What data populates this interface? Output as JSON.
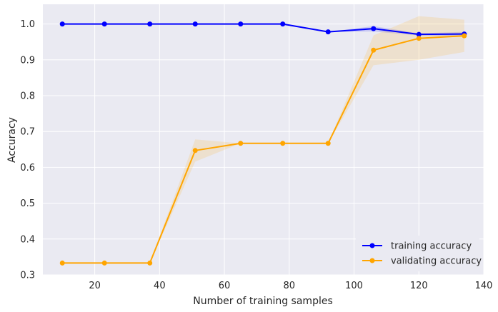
{
  "chart_data": {
    "type": "line",
    "title": "",
    "xlabel": "Number of training samples",
    "ylabel": "Accuracy",
    "xlim": [
      4,
      140
    ],
    "ylim": [
      0.3,
      1.055
    ],
    "xticks": [
      20,
      40,
      60,
      80,
      100,
      120,
      140
    ],
    "yticks": [
      0.3,
      0.4,
      0.5,
      0.6,
      0.7,
      0.8,
      0.9,
      1.0
    ],
    "xtick_labels": [
      "20",
      "40",
      "60",
      "80",
      "100",
      "120",
      "140"
    ],
    "ytick_labels": [
      "0.3",
      "0.4",
      "0.5",
      "0.6",
      "0.7",
      "0.8",
      "0.9",
      "1.0"
    ],
    "grid": true,
    "legend_position": "bottom-right",
    "x": [
      10,
      23,
      37,
      51,
      65,
      78,
      92,
      106,
      120,
      134
    ],
    "series": [
      {
        "name": "training accuracy",
        "color": "#0000ff",
        "values": [
          1.0,
          1.0,
          1.0,
          1.0,
          1.0,
          1.0,
          0.978,
          0.987,
          0.971,
          0.972
        ],
        "band_upper": [
          1.0,
          1.0,
          1.0,
          1.0,
          1.0,
          1.0,
          0.978,
          0.994,
          0.974,
          0.978
        ],
        "band_lower": [
          1.0,
          1.0,
          1.0,
          1.0,
          1.0,
          1.0,
          0.978,
          0.979,
          0.968,
          0.966
        ]
      },
      {
        "name": "validating accuracy",
        "color": "#ffa500",
        "values": [
          0.333,
          0.333,
          0.333,
          0.647,
          0.667,
          0.667,
          0.667,
          0.927,
          0.96,
          0.967
        ],
        "band_upper": [
          0.333,
          0.333,
          0.333,
          0.678,
          0.667,
          0.667,
          0.667,
          0.968,
          1.022,
          1.012
        ],
        "band_lower": [
          0.333,
          0.333,
          0.333,
          0.616,
          0.667,
          0.667,
          0.667,
          0.885,
          0.9,
          0.922
        ]
      }
    ],
    "colors": {
      "plot_background": "#eaeaf2",
      "grid": "#ffffff",
      "text": "#262626"
    }
  }
}
